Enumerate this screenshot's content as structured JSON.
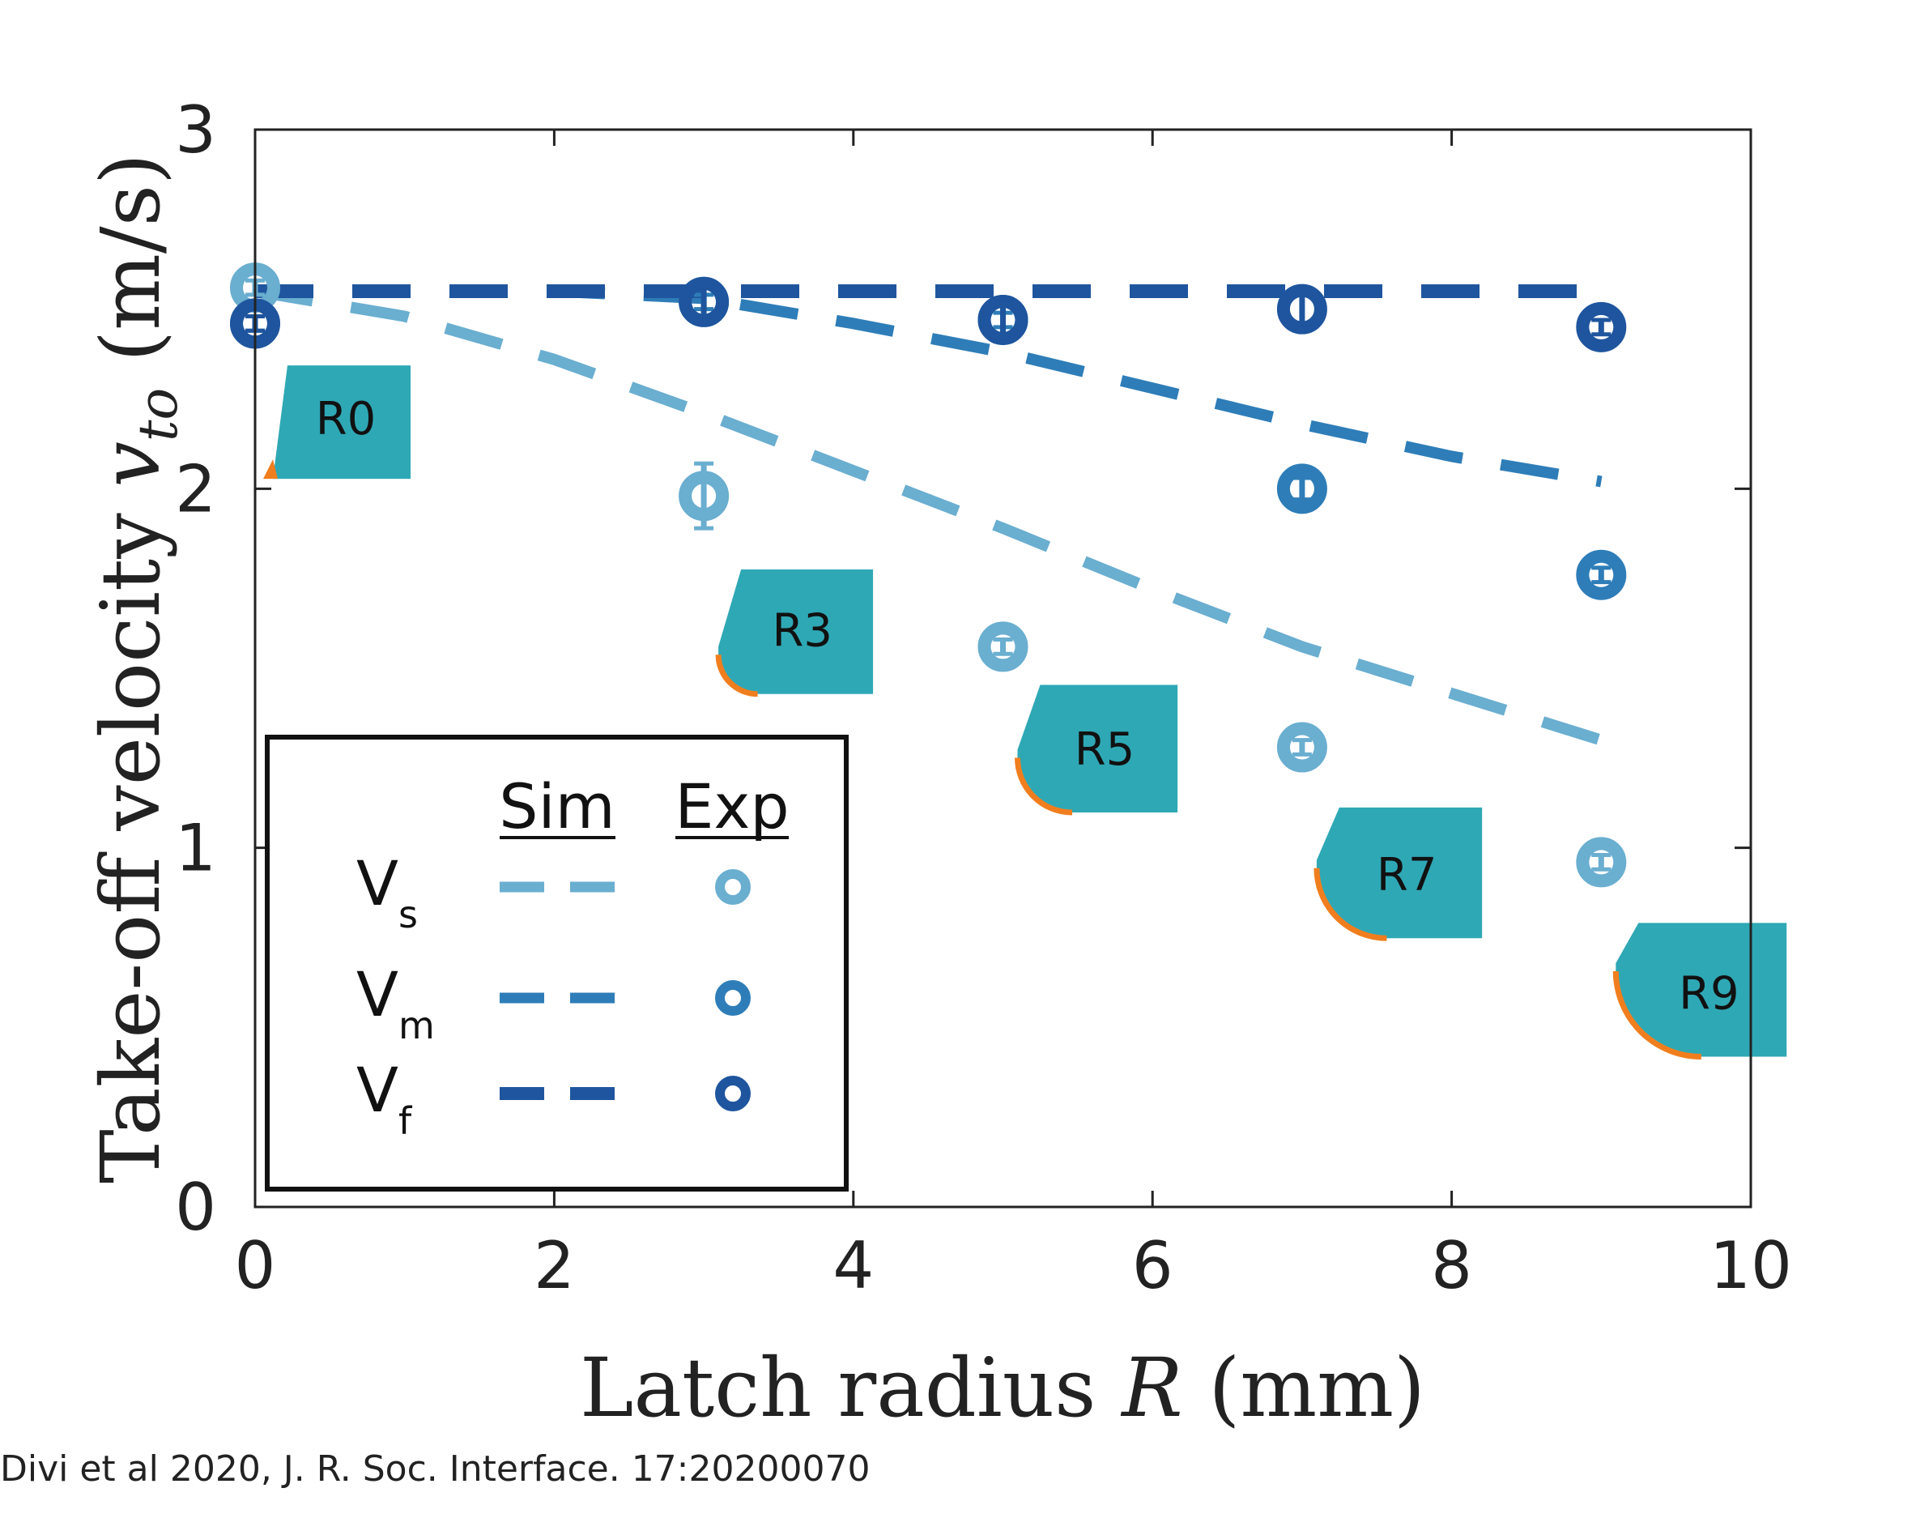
{
  "chart_data": {
    "type": "scatter",
    "xlabel": "Latch radius ",
    "xlabel_var": "R",
    "xlabel_unit": " (mm)",
    "ylabel": "Take-off velocity ",
    "ylabel_var": "v",
    "ylabel_sub": "to",
    "ylabel_unit": " (m/s)",
    "xlim": [
      0,
      10
    ],
    "ylim": [
      0,
      3
    ],
    "xticks": [
      0,
      2,
      4,
      6,
      8,
      10
    ],
    "yticks": [
      0,
      1,
      2,
      3
    ],
    "grid": false,
    "colors": {
      "Vs": "#6aaed0",
      "Vm": "#2e7db8",
      "Vf": "#1f559e",
      "latch_body": "#2fa8b5",
      "latch_edge": "#f07e1e"
    },
    "series": [
      {
        "key": "Vs",
        "name": "V",
        "sub": "s",
        "kind": "simulation",
        "x": [
          0,
          1,
          2,
          3,
          4,
          5,
          6,
          7,
          8,
          9
        ],
        "y": [
          2.55,
          2.48,
          2.36,
          2.21,
          2.05,
          1.89,
          1.72,
          1.56,
          1.43,
          1.3
        ]
      },
      {
        "key": "Vm",
        "name": "V",
        "sub": "m",
        "kind": "simulation",
        "x": [
          0,
          1,
          2,
          3,
          4,
          5,
          6,
          7,
          8,
          9
        ],
        "y": [
          2.55,
          2.55,
          2.55,
          2.53,
          2.46,
          2.38,
          2.28,
          2.18,
          2.09,
          2.02
        ]
      },
      {
        "key": "Vf",
        "name": "V",
        "sub": "f",
        "kind": "simulation",
        "x": [
          0,
          9
        ],
        "y": [
          2.55,
          2.55
        ]
      },
      {
        "key": "Vs",
        "name": "V",
        "sub": "s",
        "kind": "experiment",
        "x": [
          0,
          3,
          5,
          7,
          9
        ],
        "y": [
          2.56,
          1.98,
          1.56,
          1.28,
          0.96
        ],
        "err": [
          0.02,
          0.09,
          0.02,
          0.02,
          0.02
        ]
      },
      {
        "key": "Vm",
        "name": "V",
        "sub": "m",
        "kind": "experiment",
        "x": [
          0,
          3,
          5,
          7,
          9
        ],
        "y": [
          2.46,
          2.52,
          2.47,
          2.0,
          1.76
        ],
        "err": [
          0.02,
          0.02,
          0.02,
          0.03,
          0.02
        ]
      },
      {
        "key": "Vf",
        "name": "V",
        "sub": "f",
        "kind": "experiment",
        "x": [
          0,
          3,
          5,
          7,
          9
        ],
        "y": [
          2.46,
          2.52,
          2.47,
          2.5,
          2.45
        ],
        "err": [
          0.02,
          0.04,
          0.06,
          0.04,
          0.02
        ]
      }
    ],
    "latches": [
      {
        "label": "R0",
        "r": 0
      },
      {
        "label": "R3",
        "r": 3
      },
      {
        "label": "R5",
        "r": 5
      },
      {
        "label": "R7",
        "r": 7
      },
      {
        "label": "R9",
        "r": 9
      }
    ],
    "legend": {
      "placement": "lower-left",
      "col_sim": "Sim",
      "col_exp": "Exp",
      "rows": [
        {
          "key": "Vs",
          "name": "V",
          "sub": "s"
        },
        {
          "key": "Vm",
          "name": "V",
          "sub": "m"
        },
        {
          "key": "Vf",
          "name": "V",
          "sub": "f"
        }
      ]
    }
  },
  "citation": "Divi et al 2020, J. R. Soc. Interface. 17:20200070"
}
